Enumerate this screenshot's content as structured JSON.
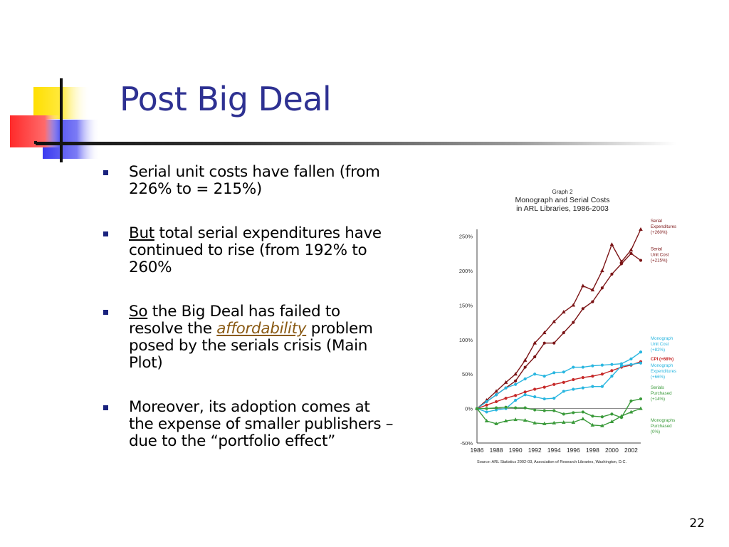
{
  "slide": {
    "title": "Post Big Deal",
    "page_number": "22",
    "bullets": [
      {
        "parts": [
          "Serial unit costs have fallen (from 226% to = 215%)"
        ]
      },
      {
        "parts": [
          "But",
          " total serial expenditures have continued to rise (from 192% to 260%"
        ]
      },
      {
        "parts": [
          "So",
          " the Big Deal has failed to resolve the ",
          "affordability",
          " problem posed by the serials crisis (Main Plot)"
        ]
      },
      {
        "parts": [
          "Moreover, its adoption comes at the expense of smaller publishers – due to the “portfolio effect”"
        ]
      }
    ]
  },
  "chart_data": {
    "type": "line",
    "title_lines": [
      "Graph 2",
      "Monograph and Serial Costs",
      "in ARL Libraries, 1986-2003"
    ],
    "source": "Source: ARL Statistics 2002-03, Association of Research Libraries, Washington, D.C.",
    "x": [
      1986,
      1987,
      1988,
      1989,
      1990,
      1991,
      1992,
      1993,
      1994,
      1995,
      1996,
      1997,
      1998,
      1999,
      2000,
      2001,
      2002,
      2003
    ],
    "x_tick_labels": [
      "1986",
      "1988",
      "1990",
      "1992",
      "1994",
      "1996",
      "1998",
      "2000",
      "2002"
    ],
    "y_ticks": [
      -50,
      0,
      50,
      100,
      150,
      200,
      250
    ],
    "y_tick_labels": [
      "-50%",
      "0%",
      "50%",
      "100%",
      "150%",
      "200%",
      "250%"
    ],
    "ylim": [
      -50,
      260
    ],
    "grid": false,
    "series": [
      {
        "name": "Serial Expenditures (+260%)",
        "label_lines": [
          "Serial",
          "Expenditures",
          "(+260%)"
        ],
        "color": "#7b1416",
        "marker": "triangle",
        "values": [
          0,
          12,
          25,
          38,
          50,
          70,
          95,
          110,
          126,
          140,
          150,
          178,
          172,
          200,
          238,
          213,
          230,
          260
        ]
      },
      {
        "name": "Serial Unit Cost (+215%)",
        "label_lines": [
          "Serial",
          "Unit Cost",
          "(+215%)"
        ],
        "color": "#7b1416",
        "marker": "circle",
        "values": [
          0,
          10,
          20,
          30,
          40,
          60,
          75,
          95,
          95,
          110,
          125,
          145,
          155,
          175,
          195,
          210,
          225,
          215
        ]
      },
      {
        "name": "Monograph Unit Cost (+82%)",
        "label_lines": [
          "Monograph",
          "Unit Cost",
          "(+82%)"
        ],
        "color": "#29b6e0",
        "marker": "circle",
        "values": [
          0,
          10,
          20,
          30,
          35,
          43,
          50,
          47,
          52,
          53,
          60,
          60,
          62,
          63,
          64,
          65,
          72,
          82
        ]
      },
      {
        "name": "CPI (+68%)",
        "label_lines": [
          "CPI (+68%)"
        ],
        "color": "#c62828",
        "marker": "circle",
        "values": [
          0,
          5,
          10,
          15,
          19,
          24,
          28,
          31,
          35,
          38,
          42,
          45,
          47,
          50,
          55,
          60,
          63,
          68
        ]
      },
      {
        "name": "Monograph Expenditures (+66%)",
        "label_lines": [
          "Monograph",
          "Expenditures",
          "(+66%)"
        ],
        "color": "#29b6e0",
        "marker": "circle",
        "values": [
          0,
          -5,
          -2,
          0,
          12,
          20,
          17,
          14,
          15,
          25,
          28,
          30,
          32,
          32,
          47,
          62,
          64,
          66
        ]
      },
      {
        "name": "Serials Purchased (+14%)",
        "label_lines": [
          "Serials",
          "Purchased",
          "(+14%)"
        ],
        "color": "#3a9a3a",
        "marker": "circle",
        "values": [
          0,
          0,
          1,
          2,
          1,
          1,
          -2,
          -3,
          -3,
          -8,
          -6,
          -5,
          -11,
          -12,
          -8,
          -13,
          11,
          14
        ]
      },
      {
        "name": "Monographs Purchased (0%)",
        "label_lines": [
          "Monographs",
          "Purchased",
          "(0%)"
        ],
        "color": "#3a9a3a",
        "marker": "triangle",
        "values": [
          0,
          -18,
          -22,
          -18,
          -16,
          -17,
          -21,
          -22,
          -21,
          -20,
          -20,
          -15,
          -24,
          -25,
          -19,
          -11,
          -5,
          0
        ]
      }
    ]
  }
}
